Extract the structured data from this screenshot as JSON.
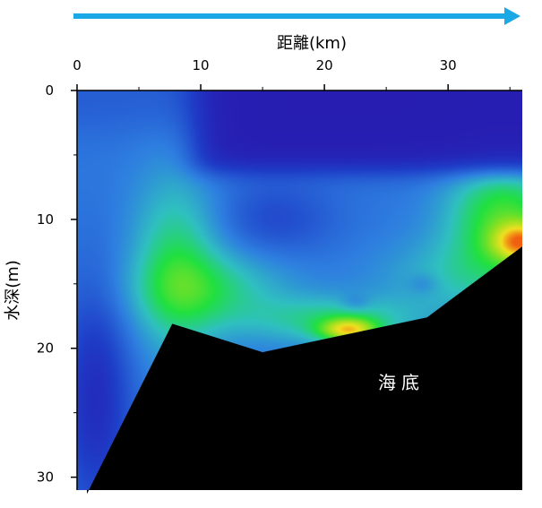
{
  "chart_data": {
    "type": "heatmap",
    "title": "",
    "xlabel": "距離(km)",
    "ylabel": "水深(m)",
    "x_axis_position": "top",
    "y_axis_reversed": true,
    "xlim": [
      0,
      36
    ],
    "ylim": [
      0,
      31
    ],
    "x_ticks": [
      0,
      10,
      20,
      30
    ],
    "y_ticks": [
      0,
      10,
      20,
      30
    ],
    "x_tick_labels": [
      "0",
      "10",
      "20",
      "30"
    ],
    "y_tick_labels": [
      "0",
      "10",
      "20",
      "30"
    ],
    "direction_arrow": {
      "from_km": 0,
      "to_km": 36,
      "color": "#1ba8e6"
    },
    "colormap": [
      "#2a10a8",
      "#1e3ec8",
      "#2e7fe0",
      "#2fc0c0",
      "#20e040",
      "#90e020",
      "#f0e020",
      "#f06010"
    ],
    "seabed": {
      "label": "海底",
      "color": "#000000",
      "profile_depth_m": [
        {
          "x": 0.8,
          "depth": 31.3
        },
        {
          "x": 7.7,
          "depth": 18.1
        },
        {
          "x": 15.0,
          "depth": 20.3
        },
        {
          "x": 28.3,
          "depth": 17.6
        },
        {
          "x": 36.0,
          "depth": 12.1
        }
      ]
    },
    "features": [
      {
        "name": "surface low-value layer",
        "x_range": [
          9,
          36
        ],
        "depth_range": [
          0,
          6.5
        ],
        "level": 0.02
      },
      {
        "name": "mid-water high-value core",
        "x": 8,
        "depth": 14,
        "level": 0.5
      },
      {
        "name": "near-bottom maximum",
        "x": 22,
        "depth": 18.5,
        "level": 0.95
      },
      {
        "name": "slope maximum",
        "x": 36,
        "depth": 11.5,
        "level": 0.9
      }
    ]
  }
}
